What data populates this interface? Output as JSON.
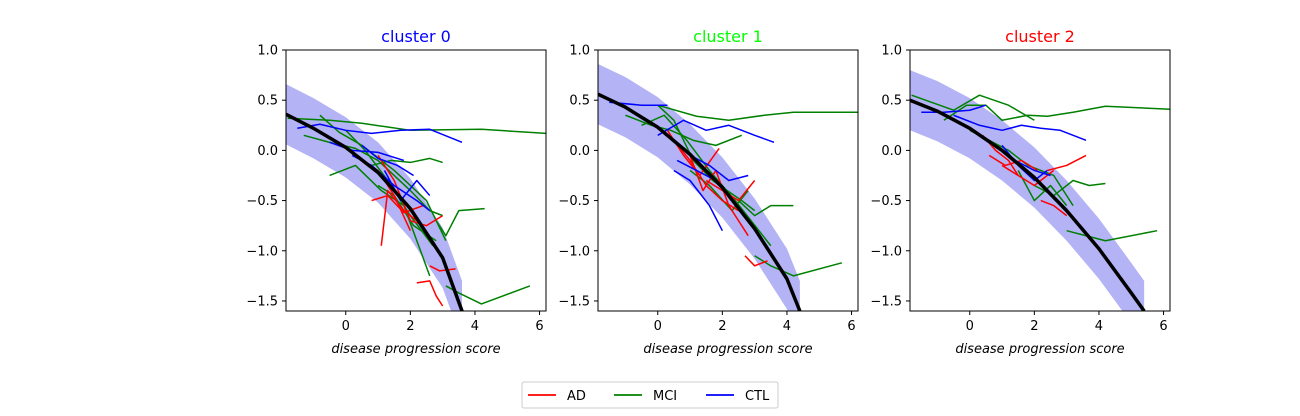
{
  "colors": {
    "AD": "#ff0000",
    "MCI": "#008000",
    "CTL": "#0000ff",
    "fit": "#000000",
    "band": "#b3b3f5"
  },
  "legend": {
    "items": [
      "AD",
      "MCI",
      "CTL"
    ],
    "placement": "bottom-center"
  },
  "chart_data": [
    {
      "type": "line",
      "title": "cluster 0",
      "title_color": "#0000ff",
      "xlabel": "disease progression score",
      "ylabel": "",
      "xlim": [
        -1.85,
        6.2
      ],
      "ylim": [
        -1.6,
        1.0
      ],
      "xticks": [
        0,
        2,
        4,
        6
      ],
      "yticks": [
        1.0,
        0.5,
        0.0,
        -0.5,
        -1.0,
        -1.5
      ],
      "fit_curve": {
        "x": [
          -1.85,
          -1.0,
          0.0,
          1.0,
          2.0,
          3.0,
          3.6
        ],
        "y": [
          0.36,
          0.22,
          0.03,
          -0.22,
          -0.58,
          -1.07,
          -1.6
        ]
      },
      "band_halfwidth": 0.3,
      "series": [
        {
          "group": "MCI",
          "x": [
            -1.8,
            -0.5,
            0.5,
            2.0,
            4.2,
            6.2
          ],
          "y": [
            0.32,
            0.3,
            0.27,
            0.2,
            0.21,
            0.17
          ]
        },
        {
          "group": "MCI",
          "x": [
            3.1,
            3.5,
            4.2,
            5.7
          ],
          "y": [
            -1.35,
            -1.42,
            -1.53,
            -1.35
          ]
        },
        {
          "group": "MCI",
          "x": [
            2.8,
            3.1,
            3.5,
            4.3
          ],
          "y": [
            -0.7,
            -0.85,
            -0.6,
            -0.58
          ]
        },
        {
          "group": "MCI",
          "x": [
            -1.3,
            -0.5,
            0.3,
            1.0,
            2.0,
            2.6,
            3.0
          ],
          "y": [
            0.15,
            0.08,
            0.02,
            -0.1,
            -0.4,
            -0.6,
            -0.65
          ]
        },
        {
          "group": "MCI",
          "x": [
            -0.8,
            -0.2,
            0.5,
            1.5,
            2.5,
            3.1
          ],
          "y": [
            0.35,
            0.18,
            0.05,
            -0.2,
            -0.5,
            -0.9
          ]
        },
        {
          "group": "MCI",
          "x": [
            0.0,
            0.6,
            1.3,
            2.0,
            2.7
          ],
          "y": [
            0.2,
            0.0,
            -0.3,
            -0.65,
            -0.95
          ]
        },
        {
          "group": "MCI",
          "x": [
            -0.5,
            0.3,
            1.1,
            1.8,
            2.6
          ],
          "y": [
            -0.25,
            -0.15,
            -0.4,
            -0.55,
            -1.25
          ]
        },
        {
          "group": "MCI",
          "x": [
            0.8,
            1.4,
            2.0,
            2.6,
            3.0
          ],
          "y": [
            -0.15,
            -0.1,
            -0.12,
            -0.08,
            -0.12
          ]
        },
        {
          "group": "MCI",
          "x": [
            1.0,
            1.5,
            2.1,
            2.8
          ],
          "y": [
            -0.35,
            -0.45,
            -0.75,
            -0.9
          ]
        },
        {
          "group": "AD",
          "x": [
            1.1,
            1.3,
            1.8,
            2.2
          ],
          "y": [
            -0.95,
            -0.4,
            -0.6,
            -0.7
          ]
        },
        {
          "group": "AD",
          "x": [
            1.0,
            1.5,
            2.0,
            2.5,
            3.0
          ],
          "y": [
            -0.05,
            -0.3,
            -0.7,
            -0.75,
            -0.65
          ]
        },
        {
          "group": "AD",
          "x": [
            2.6,
            2.9,
            3.4
          ],
          "y": [
            -1.15,
            -1.2,
            -1.18
          ]
        },
        {
          "group": "AD",
          "x": [
            2.2,
            2.6,
            2.8,
            3.0
          ],
          "y": [
            -1.32,
            -1.3,
            -1.45,
            -1.55
          ]
        },
        {
          "group": "AD",
          "x": [
            0.5,
            1.0,
            1.5,
            2.0
          ],
          "y": [
            -0.1,
            -0.2,
            -0.45,
            -0.8
          ]
        },
        {
          "group": "AD",
          "x": [
            0.8,
            1.3,
            1.8,
            2.4
          ],
          "y": [
            -0.5,
            -0.45,
            -0.62,
            -0.55
          ]
        },
        {
          "group": "CTL",
          "x": [
            -1.5,
            -0.8,
            0.0,
            0.8,
            1.7,
            2.6,
            3.6
          ],
          "y": [
            0.22,
            0.26,
            0.2,
            0.17,
            0.2,
            0.21,
            0.08
          ]
        },
        {
          "group": "CTL",
          "x": [
            -0.5,
            0.2,
            1.0,
            1.8
          ],
          "y": [
            0.08,
            0.0,
            -0.02,
            -0.1
          ]
        },
        {
          "group": "CTL",
          "x": [
            0.2,
            0.8,
            1.5,
            2.2,
            2.6
          ],
          "y": [
            -0.05,
            -0.15,
            -0.35,
            -0.5,
            -0.6
          ]
        },
        {
          "group": "CTL",
          "x": [
            1.2,
            1.7,
            2.2,
            2.6
          ],
          "y": [
            -0.2,
            -0.5,
            -0.3,
            -0.45
          ]
        },
        {
          "group": "CTL",
          "x": [
            0.5,
            1.0,
            1.6,
            2.1
          ],
          "y": [
            0.05,
            -0.08,
            -0.15,
            -0.25
          ]
        }
      ]
    },
    {
      "type": "line",
      "title": "cluster 1",
      "title_color": "#00ff00",
      "xlabel": "disease progression score",
      "ylabel": "",
      "xlim": [
        -1.85,
        6.2
      ],
      "ylim": [
        -1.6,
        1.0
      ],
      "xticks": [
        0,
        2,
        4,
        6
      ],
      "yticks": [
        1.0,
        0.5,
        0.0,
        -0.5,
        -1.0,
        -1.5
      ],
      "fit_curve": {
        "x": [
          -1.85,
          -1.0,
          0.0,
          1.0,
          2.0,
          3.0,
          4.0,
          4.4
        ],
        "y": [
          0.56,
          0.43,
          0.23,
          -0.04,
          -0.37,
          -0.78,
          -1.28,
          -1.6
        ]
      },
      "band_halfwidth": 0.3,
      "series": [
        {
          "group": "MCI",
          "x": [
            0.0,
            1.2,
            2.2,
            3.3,
            4.2,
            6.2
          ],
          "y": [
            0.45,
            0.34,
            0.3,
            0.35,
            0.38,
            0.38
          ]
        },
        {
          "group": "MCI",
          "x": [
            3.0,
            3.5,
            4.2,
            5.7
          ],
          "y": [
            -1.05,
            -1.15,
            -1.25,
            -1.12
          ]
        },
        {
          "group": "MCI",
          "x": [
            2.5,
            3.0,
            3.5,
            4.2
          ],
          "y": [
            -0.5,
            -0.65,
            -0.55,
            -0.55
          ]
        },
        {
          "group": "MCI",
          "x": [
            -1.0,
            -0.2,
            0.4,
            1.1,
            1.8,
            2.6
          ],
          "y": [
            0.35,
            0.25,
            0.2,
            0.1,
            0.05,
            0.15
          ]
        },
        {
          "group": "MCI",
          "x": [
            -0.5,
            0.2,
            0.9,
            1.6,
            2.4,
            3.5
          ],
          "y": [
            0.25,
            0.35,
            0.1,
            -0.2,
            -0.5,
            -0.95
          ]
        },
        {
          "group": "MCI",
          "x": [
            0.0,
            0.5,
            1.1,
            1.7,
            2.6,
            3.0
          ],
          "y": [
            0.45,
            0.3,
            -0.1,
            -0.3,
            -0.5,
            -0.6
          ]
        },
        {
          "group": "MCI",
          "x": [
            1.0,
            1.6,
            2.3,
            2.8
          ],
          "y": [
            -0.2,
            -0.35,
            -0.6,
            -0.4
          ]
        },
        {
          "group": "AD",
          "x": [
            0.5,
            1.0,
            1.5,
            2.0,
            2.5
          ],
          "y": [
            0.1,
            -0.1,
            -0.35,
            -0.5,
            -0.6
          ]
        },
        {
          "group": "AD",
          "x": [
            1.0,
            1.4,
            1.8,
            2.2,
            2.8
          ],
          "y": [
            -0.05,
            -0.4,
            -0.2,
            -0.55,
            -0.85
          ]
        },
        {
          "group": "AD",
          "x": [
            2.7,
            3.0,
            3.4
          ],
          "y": [
            -1.05,
            -1.15,
            -1.1
          ]
        },
        {
          "group": "AD",
          "x": [
            0.3,
            0.8,
            1.3,
            1.9
          ],
          "y": [
            0.2,
            -0.05,
            -0.25,
            0.02
          ]
        },
        {
          "group": "AD",
          "x": [
            1.5,
            2.0,
            2.5,
            3.0
          ],
          "y": [
            -0.3,
            -0.4,
            -0.5,
            -0.3
          ]
        },
        {
          "group": "CTL",
          "x": [
            -1.5,
            -0.5,
            0.3
          ],
          "y": [
            0.48,
            0.45,
            0.45
          ]
        },
        {
          "group": "CTL",
          "x": [
            0.0,
            0.8,
            1.5,
            2.2,
            3.0,
            3.6
          ],
          "y": [
            0.15,
            0.3,
            0.2,
            0.25,
            0.15,
            0.08
          ]
        },
        {
          "group": "CTL",
          "x": [
            0.5,
            1.0,
            1.6,
            2.0
          ],
          "y": [
            -0.2,
            -0.3,
            -0.55,
            -0.8
          ]
        },
        {
          "group": "CTL",
          "x": [
            1.0,
            1.6,
            2.2,
            2.8
          ],
          "y": [
            -0.05,
            -0.15,
            -0.3,
            -0.25
          ]
        },
        {
          "group": "CTL",
          "x": [
            0.6,
            1.2,
            1.8
          ],
          "y": [
            -0.1,
            -0.2,
            -0.3
          ]
        }
      ]
    },
    {
      "type": "line",
      "title": "cluster 2",
      "title_color": "#ff0000",
      "xlabel": "disease progression score",
      "ylabel": "",
      "xlim": [
        -1.85,
        6.2
      ],
      "ylim": [
        -1.6,
        1.0
      ],
      "xticks": [
        0,
        2,
        4,
        6
      ],
      "yticks": [
        1.0,
        0.5,
        0.0,
        -0.5,
        -1.0,
        -1.5
      ],
      "fit_curve": {
        "x": [
          -1.85,
          -1.0,
          0.0,
          1.0,
          2.0,
          3.0,
          4.0,
          5.0,
          5.4
        ],
        "y": [
          0.5,
          0.39,
          0.22,
          0.0,
          -0.27,
          -0.6,
          -0.98,
          -1.42,
          -1.6
        ]
      },
      "band_halfwidth": 0.3,
      "series": [
        {
          "group": "MCI",
          "x": [
            -0.8,
            -0.1,
            0.5,
            1.0,
            1.8,
            2.4,
            3.2,
            4.2,
            6.2
          ],
          "y": [
            0.3,
            0.45,
            0.45,
            0.3,
            0.35,
            0.34,
            0.38,
            0.44,
            0.41
          ]
        },
        {
          "group": "MCI",
          "x": [
            -1.8,
            -0.5,
            0.3,
            1.2,
            2.0
          ],
          "y": [
            0.55,
            0.4,
            0.55,
            0.45,
            0.3
          ]
        },
        {
          "group": "MCI",
          "x": [
            3.0,
            3.6,
            4.2,
            5.8
          ],
          "y": [
            -0.8,
            -0.85,
            -0.9,
            -0.8
          ]
        },
        {
          "group": "MCI",
          "x": [
            2.0,
            2.6,
            3.2,
            3.7,
            4.2
          ],
          "y": [
            -0.35,
            -0.45,
            -0.3,
            -0.35,
            -0.33
          ]
        },
        {
          "group": "MCI",
          "x": [
            0.0,
            0.6,
            1.2,
            1.8,
            2.6,
            3.2
          ],
          "y": [
            0.2,
            0.1,
            0.0,
            -0.15,
            -0.25,
            -0.55
          ]
        },
        {
          "group": "MCI",
          "x": [
            1.5,
            2.0,
            2.5,
            3.0
          ],
          "y": [
            -0.2,
            -0.5,
            -0.35,
            -0.55
          ]
        },
        {
          "group": "AD",
          "x": [
            0.6,
            1.1,
            1.6,
            2.1
          ],
          "y": [
            -0.05,
            -0.15,
            -0.1,
            -0.2
          ]
        },
        {
          "group": "AD",
          "x": [
            1.0,
            1.5,
            2.0,
            2.6
          ],
          "y": [
            -0.15,
            -0.25,
            -0.35,
            -0.2
          ]
        },
        {
          "group": "AD",
          "x": [
            2.2,
            2.6,
            3.0
          ],
          "y": [
            -0.5,
            -0.55,
            -0.65
          ]
        },
        {
          "group": "AD",
          "x": [
            2.4,
            3.0,
            3.6
          ],
          "y": [
            -0.2,
            -0.15,
            -0.05
          ]
        },
        {
          "group": "AD",
          "x": [
            0.4,
            0.8,
            1.2,
            1.5
          ],
          "y": [
            0.15,
            0.0,
            -0.1,
            -0.25
          ]
        },
        {
          "group": "CTL",
          "x": [
            -1.5,
            -0.8,
            0.0,
            0.5
          ],
          "y": [
            0.38,
            0.38,
            0.4,
            0.45
          ]
        },
        {
          "group": "CTL",
          "x": [
            -0.5,
            0.3,
            1.0,
            1.6,
            2.2,
            2.8,
            3.6
          ],
          "y": [
            0.35,
            0.25,
            0.2,
            0.25,
            0.22,
            0.2,
            0.1
          ]
        },
        {
          "group": "CTL",
          "x": [
            0.3,
            0.8,
            1.4,
            2.0,
            2.5
          ],
          "y": [
            0.15,
            0.05,
            -0.1,
            -0.2,
            -0.25
          ]
        },
        {
          "group": "CTL",
          "x": [
            1.0,
            1.5,
            2.0,
            2.4
          ],
          "y": [
            0.05,
            -0.15,
            -0.3,
            -0.2
          ]
        }
      ]
    }
  ]
}
